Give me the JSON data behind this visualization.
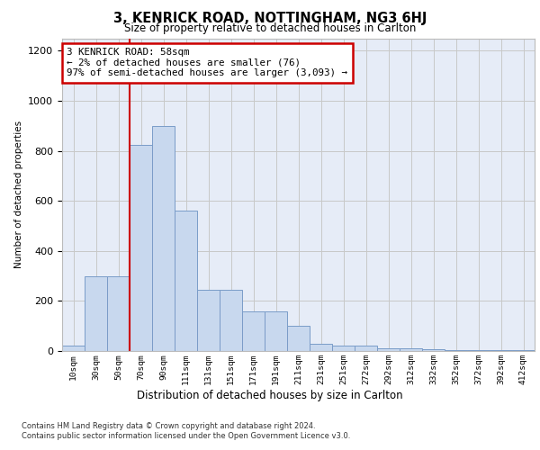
{
  "title": "3, KENRICK ROAD, NOTTINGHAM, NG3 6HJ",
  "subtitle": "Size of property relative to detached houses in Carlton",
  "xlabel": "Distribution of detached houses by size in Carlton",
  "ylabel": "Number of detached properties",
  "categories": [
    "10sqm",
    "30sqm",
    "50sqm",
    "70sqm",
    "90sqm",
    "111sqm",
    "131sqm",
    "151sqm",
    "171sqm",
    "191sqm",
    "211sqm",
    "231sqm",
    "251sqm",
    "272sqm",
    "292sqm",
    "312sqm",
    "332sqm",
    "352sqm",
    "372sqm",
    "392sqm",
    "412sqm"
  ],
  "values": [
    20,
    300,
    300,
    825,
    900,
    560,
    245,
    245,
    160,
    160,
    100,
    30,
    20,
    20,
    10,
    10,
    8,
    5,
    5,
    5,
    5
  ],
  "bar_color": "#c8d8ee",
  "bar_edge_color": "#7a9cc8",
  "red_line_index": 2,
  "annotation_text": "3 KENRICK ROAD: 58sqm\n← 2% of detached houses are smaller (76)\n97% of semi-detached houses are larger (3,093) →",
  "annotation_box_color": "#ffffff",
  "annotation_box_edge_color": "#cc0000",
  "red_line_color": "#cc0000",
  "ylim": [
    0,
    1250
  ],
  "yticks": [
    0,
    200,
    400,
    600,
    800,
    1000,
    1200
  ],
  "grid_color": "#c8c8c8",
  "bg_color": "#e6ecf7",
  "footer_line1": "Contains HM Land Registry data © Crown copyright and database right 2024.",
  "footer_line2": "Contains public sector information licensed under the Open Government Licence v3.0."
}
